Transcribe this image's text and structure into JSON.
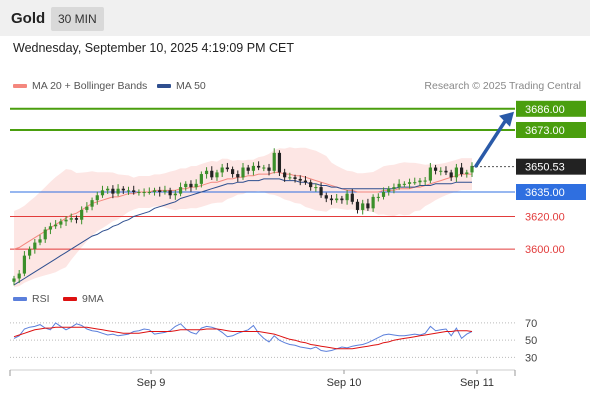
{
  "header": {
    "symbol": "Gold",
    "timeframe": "30 MIN"
  },
  "datetime": "Wednesday, September 10, 2025 4:19:09 PM CET",
  "legend": {
    "ma20": {
      "label": "MA 20 + Bollinger Bands",
      "color": "#f4877e"
    },
    "ma50": {
      "label": "MA 50",
      "color": "#2f4f8f"
    }
  },
  "credit": "Research © 2025 Trading Central",
  "rsi_legend": {
    "rsi": {
      "label": "RSI",
      "color": "#5b7fdb"
    },
    "ma9": {
      "label": "9MA",
      "color": "#dd1111"
    }
  },
  "chart_data": [
    {
      "type": "candlestick",
      "x_ticks": [
        "Sep 9",
        "Sep 10",
        "Sep 11"
      ],
      "ylim": [
        3578,
        3692
      ],
      "current_price": {
        "value": 3650.53,
        "label": "3650.53"
      },
      "levels": [
        {
          "value": 3686.0,
          "label": "3686.00",
          "kind": "target",
          "color": "#4a9e0e"
        },
        {
          "value": 3673.0,
          "label": "3673.00",
          "kind": "target",
          "color": "#4a9e0e"
        },
        {
          "value": 3635.0,
          "label": "3635.00",
          "kind": "pivot",
          "color": "#2f6fe0"
        },
        {
          "value": 3620.0,
          "label": "3620.00",
          "kind": "support",
          "color": "#e23b3b"
        },
        {
          "value": 3600.0,
          "label": "3600.00",
          "kind": "support",
          "color": "#e23b3b"
        }
      ],
      "closes": [
        3582,
        3585,
        3596,
        3600,
        3604,
        3606,
        3612,
        3614,
        3615,
        3617,
        3618,
        3619,
        3618,
        3624,
        3626,
        3630,
        3633,
        3636,
        3637,
        3634,
        3637,
        3636,
        3636,
        3635,
        3635,
        3635,
        3635,
        3636,
        3635,
        3636,
        3633,
        3634,
        3638,
        3640,
        3638,
        3640,
        3646,
        3648,
        3644,
        3647,
        3650,
        3649,
        3646,
        3644,
        3650,
        3648,
        3651,
        3650,
        3650,
        3648,
        3659,
        3647,
        3644,
        3644,
        3643,
        3642,
        3641,
        3638,
        3638,
        3633,
        3631,
        3630,
        3631,
        3630,
        3634,
        3629,
        3624,
        3628,
        3625,
        3632,
        3632,
        3635,
        3637,
        3638,
        3640,
        3640,
        3641,
        3641,
        3642,
        3642,
        3650,
        3648,
        3648,
        3647,
        3644,
        3650,
        3646,
        3647,
        3651
      ],
      "ma20": [
        3600,
        3601,
        3603,
        3605,
        3607,
        3609,
        3611,
        3613,
        3615,
        3617,
        3619,
        3621,
        3622,
        3624,
        3626,
        3628,
        3629,
        3630,
        3631,
        3632,
        3632,
        3633,
        3634,
        3634,
        3635,
        3635,
        3635,
        3636,
        3636,
        3636,
        3636,
        3636,
        3637,
        3637,
        3638,
        3638,
        3639,
        3640,
        3641,
        3641,
        3642,
        3643,
        3643,
        3644,
        3644,
        3645,
        3645,
        3646,
        3646,
        3646,
        3647,
        3647,
        3646,
        3646,
        3645,
        3645,
        3644,
        3643,
        3642,
        3641,
        3640,
        3639,
        3638,
        3637,
        3636,
        3636,
        3635,
        3635,
        3635,
        3635,
        3635,
        3636,
        3636,
        3636,
        3637,
        3637,
        3637,
        3638,
        3638,
        3639,
        3640,
        3641,
        3642,
        3643,
        3644,
        3645,
        3646,
        3646,
        3646
      ],
      "ma50": [
        3578,
        3580,
        3582,
        3584,
        3586,
        3588,
        3590,
        3592,
        3594,
        3596,
        3598,
        3600,
        3602,
        3604,
        3606,
        3608,
        3609,
        3611,
        3612,
        3614,
        3615,
        3617,
        3618,
        3620,
        3621,
        3622,
        3623,
        3625,
        3626,
        3627,
        3628,
        3629,
        3631,
        3632,
        3633,
        3634,
        3635,
        3636,
        3637,
        3638,
        3639,
        3640,
        3640,
        3641,
        3641,
        3642,
        3642,
        3642,
        3643,
        3643,
        3643,
        3643,
        3642,
        3642,
        3642,
        3641,
        3641,
        3640,
        3640,
        3639,
        3639,
        3638,
        3638,
        3637,
        3637,
        3637,
        3637,
        3637,
        3637,
        3637,
        3637,
        3637,
        3637,
        3637,
        3638,
        3638,
        3638,
        3638,
        3639,
        3639,
        3639,
        3640,
        3640,
        3640,
        3640,
        3641,
        3641,
        3641,
        3641
      ]
    },
    {
      "type": "line",
      "title": "RSI",
      "ylim": [
        20,
        85
      ],
      "y_ticks": [
        70,
        50,
        30
      ],
      "series": [
        {
          "name": "RSI",
          "values": [
            52,
            55,
            63,
            65,
            66,
            68,
            64,
            62,
            70,
            66,
            62,
            65,
            69,
            67,
            63,
            61,
            60,
            58,
            56,
            57,
            55,
            56,
            57,
            60,
            61,
            63,
            62,
            57,
            58,
            59,
            61,
            66,
            69,
            63,
            59,
            57,
            64,
            66,
            65,
            63,
            59,
            54,
            55,
            58,
            60,
            62,
            67,
            58,
            52,
            48,
            55,
            50,
            47,
            45,
            44,
            42,
            41,
            40,
            42,
            38,
            37,
            38,
            40,
            42,
            41,
            43,
            44,
            45,
            47,
            50,
            53,
            56,
            57,
            56,
            55,
            55,
            56,
            57,
            56,
            58,
            66,
            61,
            62,
            63,
            55,
            64,
            52,
            57,
            60
          ]
        },
        {
          "name": "9MA",
          "values": [
            54,
            56,
            58,
            60,
            62,
            63,
            64,
            64,
            65,
            65,
            65,
            65,
            65,
            65,
            65,
            64,
            63,
            62,
            61,
            60,
            59,
            58,
            58,
            58,
            58,
            59,
            60,
            60,
            60,
            60,
            60,
            61,
            62,
            62,
            62,
            62,
            62,
            63,
            63,
            63,
            62,
            61,
            60,
            60,
            60,
            60,
            60,
            60,
            59,
            58,
            57,
            55,
            53,
            51,
            50,
            48,
            47,
            45,
            44,
            43,
            42,
            41,
            40,
            40,
            40,
            40,
            41,
            42,
            43,
            44,
            45,
            47,
            48,
            50,
            51,
            52,
            53,
            54,
            55,
            56,
            57,
            58,
            59,
            60,
            60,
            61,
            61,
            61,
            60
          ]
        }
      ]
    }
  ]
}
